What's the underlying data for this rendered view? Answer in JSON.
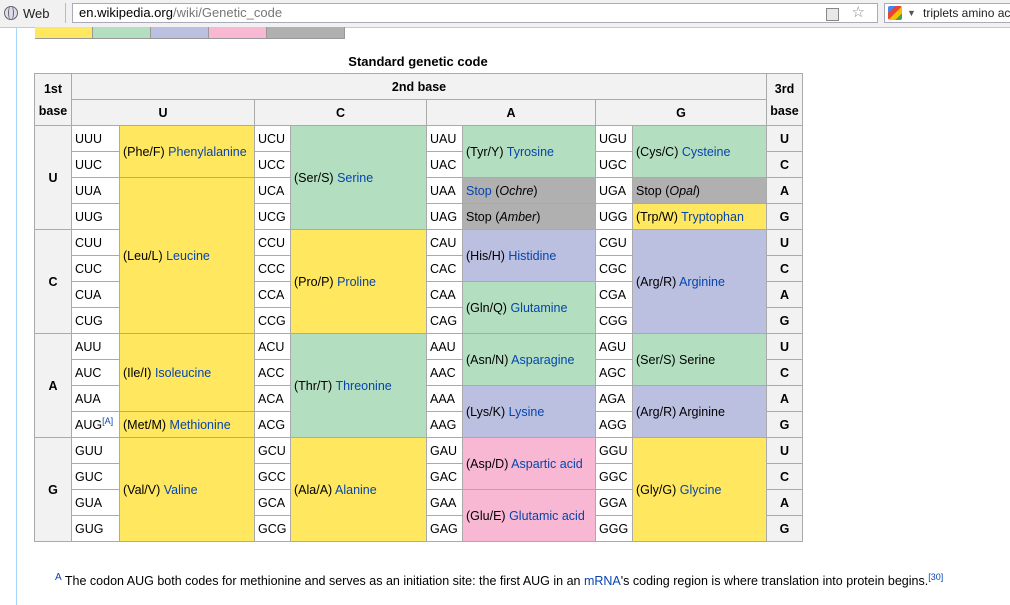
{
  "browser": {
    "web_label": "Web",
    "url_host": "en.wikipedia.org",
    "url_path": "/wiki/Genetic_code",
    "search_text": "triplets amino ac"
  },
  "legend_colors": [
    "#ffe75f",
    "#b3dec0",
    "#bbbfe0",
    "#f8b7d3",
    "#b0b0b0"
  ],
  "table": {
    "caption": "Standard genetic code",
    "first_base_header": "1st base",
    "second_base_header": "2nd base",
    "third_base_header": "3rd base",
    "second_bases": [
      "U",
      "C",
      "A",
      "G"
    ],
    "first_bases": [
      "U",
      "C",
      "A",
      "G"
    ],
    "third_bases": [
      "U",
      "C",
      "A",
      "G",
      "U",
      "C",
      "A",
      "G",
      "U",
      "C",
      "A",
      "G",
      "U",
      "C",
      "A",
      "G"
    ],
    "codons": {
      "U": [
        [
          "UUU",
          "UCU",
          "UAU",
          "UGU"
        ],
        [
          "UUC",
          "UCC",
          "UAC",
          "UGC"
        ],
        [
          "UUA",
          "UCA",
          "UAA",
          "UGA"
        ],
        [
          "UUG",
          "UCG",
          "UAG",
          "UGG"
        ]
      ],
      "C": [
        [
          "CUU",
          "CCU",
          "CAU",
          "CGU"
        ],
        [
          "CUC",
          "CCC",
          "CAC",
          "CGC"
        ],
        [
          "CUA",
          "CCA",
          "CAA",
          "CGA"
        ],
        [
          "CUG",
          "CCG",
          "CAG",
          "CGG"
        ]
      ],
      "A": [
        [
          "AUU",
          "ACU",
          "AAU",
          "AGU"
        ],
        [
          "AUC",
          "ACC",
          "AAC",
          "AGC"
        ],
        [
          "AUA",
          "ACA",
          "AAA",
          "AGA"
        ],
        [
          "AUG",
          "ACG",
          "AAG",
          "AGG"
        ]
      ],
      "G": [
        [
          "GUU",
          "GCU",
          "GAU",
          "GGU"
        ],
        [
          "GUC",
          "GCC",
          "GAC",
          "GGC"
        ],
        [
          "GUA",
          "GCA",
          "GAA",
          "GGA"
        ],
        [
          "GUG",
          "GCG",
          "GAG",
          "GGG"
        ]
      ]
    },
    "aug_note": "[A]",
    "amino": {
      "phe_code": "(Phe/F) ",
      "phe": "Phenylalanine",
      "leu_code": "(Leu/L) ",
      "leu": "Leucine",
      "ser_code": "(Ser/S) ",
      "ser": "Serine",
      "pro_code": "(Pro/P) ",
      "pro": "Proline",
      "thr_code": "(Thr/T) ",
      "thr": "Threonine",
      "ala_code": "(Ala/A) ",
      "ala": "Alanine",
      "tyr_code": "(Tyr/Y) ",
      "tyr": "Tyrosine",
      "stop": "Stop",
      "ochre": "Ochre",
      "amber": "Amber",
      "opal": "Opal",
      "his_code": "(His/H) ",
      "his": "Histidine",
      "gln_code": "(Gln/Q) ",
      "gln": "Glutamine",
      "asn_code": "(Asn/N) ",
      "asn": "Asparagine",
      "lys_code": "(Lys/K) ",
      "lys": "Lysine",
      "asp_code": "(Asp/D) ",
      "asp": "Aspartic acid",
      "glu_code": "(Glu/E) ",
      "glu": "Glutamic acid",
      "cys_code": "(Cys/C) ",
      "cys": "Cysteine",
      "trp_code": "(Trp/W) ",
      "trp": "Tryptophan",
      "arg_code": "(Arg/R) ",
      "arg": "Arginine",
      "ser2": "(Ser/S) Serine",
      "arg2": "(Arg/R) Arginine",
      "gly_code": "(Gly/G) ",
      "gly": "Glycine",
      "ile_code": "(Ile/I) ",
      "ile": "Isoleucine",
      "met_code": "(Met/M) ",
      "met": "Methionine",
      "val_code": "(Val/V) ",
      "val": "Valine"
    }
  },
  "footnote": {
    "marker": "A",
    "text_before": " The codon AUG both codes for methionine and serves as an initiation site: the first AUG in an ",
    "link": "mRNA",
    "text_after": "'s coding region is where translation into protein begins.",
    "ref": "[30]"
  }
}
